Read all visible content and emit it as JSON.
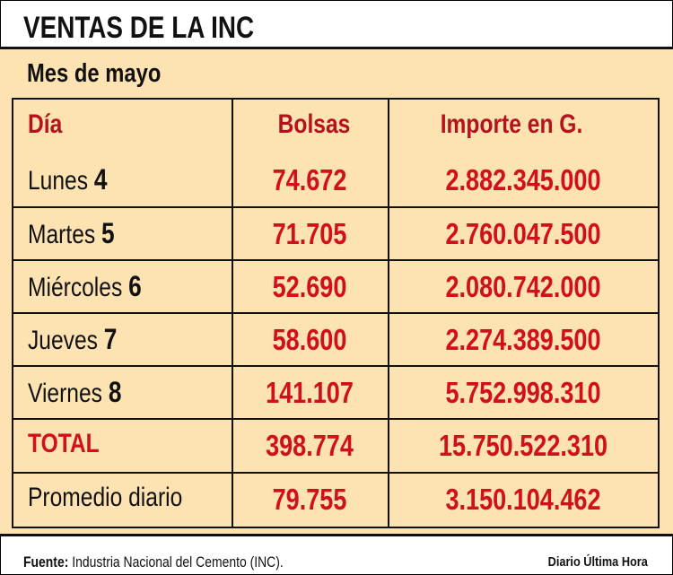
{
  "header": {
    "title": "VENTAS DE LA INC",
    "subtitle": "Mes de mayo"
  },
  "table": {
    "columns": [
      "Día",
      "Bolsas",
      "Importe en G."
    ],
    "rows": [
      {
        "day": "Lunes",
        "num": "4",
        "bolsas": "74.672",
        "importe": "2.882.345.000"
      },
      {
        "day": "Martes",
        "num": "5",
        "bolsas": "71.705",
        "importe": "2.760.047.500"
      },
      {
        "day": "Miércoles",
        "num": "6",
        "bolsas": "52.690",
        "importe": "2.080.742.000"
      },
      {
        "day": "Jueves",
        "num": "7",
        "bolsas": "58.600",
        "importe": "2.274.389.500"
      },
      {
        "day": "Viernes",
        "num": "8",
        "bolsas": "141.107",
        "importe": "5.752.998.310"
      }
    ],
    "total": {
      "label": "TOTAL",
      "bolsas": "398.774",
      "importe": "15.750.522.310"
    },
    "average": {
      "label": "Promedio diario",
      "bolsas": "79.755",
      "importe": "3.150.104.462"
    }
  },
  "footer": {
    "source_label": "Fuente:",
    "source": "Industria Nacional del Cemento (INC).",
    "credit": "Diario Última Hora"
  }
}
